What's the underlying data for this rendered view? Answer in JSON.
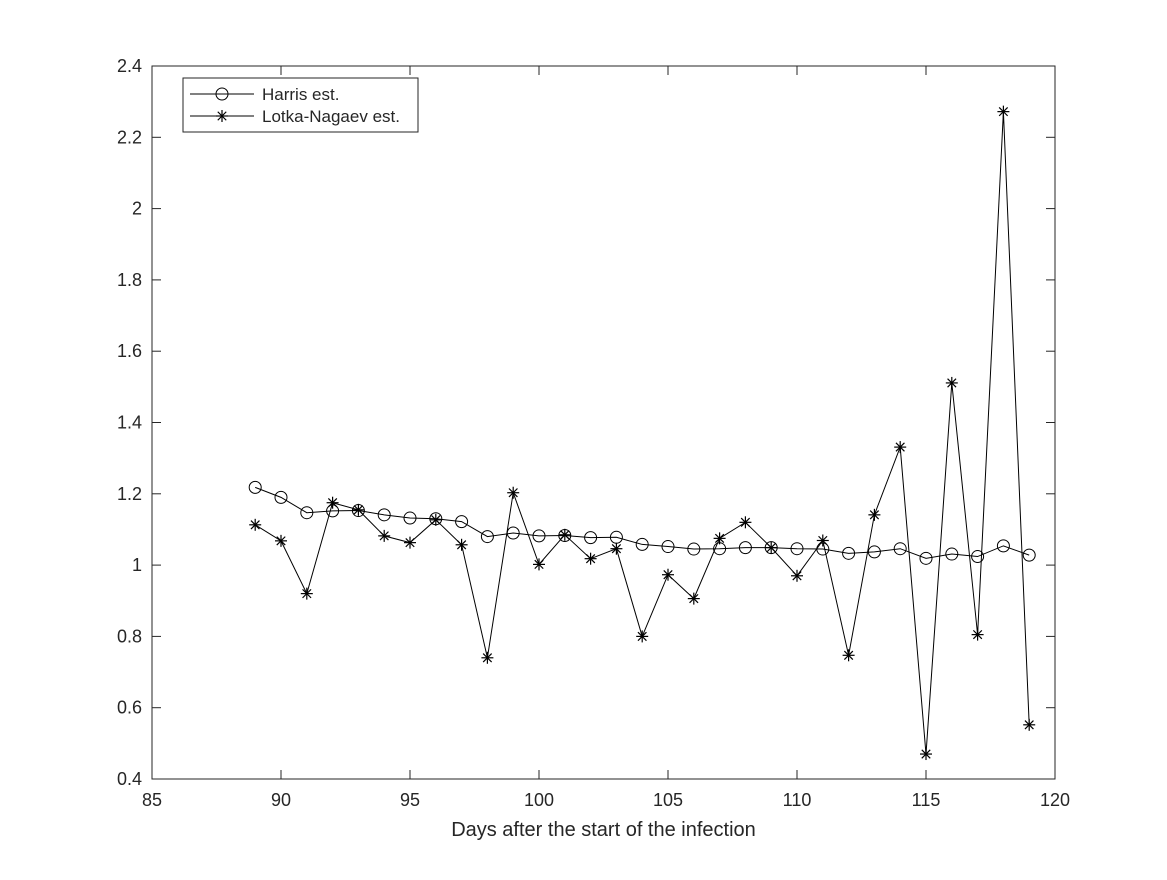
{
  "chart_data": {
    "type": "line",
    "title": "",
    "xlabel": "Days after the start of the infection",
    "ylabel": "",
    "xlim": [
      85,
      120
    ],
    "ylim": [
      0.4,
      2.4
    ],
    "xticks": [
      85,
      90,
      95,
      100,
      105,
      110,
      115,
      120
    ],
    "yticks": [
      0.4,
      0.6,
      0.8,
      1,
      1.2,
      1.4,
      1.6,
      1.8,
      2,
      2.2,
      2.4
    ],
    "grid": false,
    "legend_position": "top-left",
    "x": [
      89,
      90,
      91,
      92,
      93,
      94,
      95,
      96,
      97,
      98,
      99,
      100,
      101,
      102,
      103,
      104,
      105,
      106,
      107,
      108,
      109,
      110,
      111,
      112,
      113,
      114,
      115,
      116,
      117,
      118,
      119
    ],
    "series": [
      {
        "name": "Harris est.",
        "marker": "circle",
        "color": "#000000",
        "values": [
          1.218,
          1.19,
          1.147,
          1.152,
          1.153,
          1.141,
          1.132,
          1.13,
          1.122,
          1.08,
          1.09,
          1.082,
          1.083,
          1.077,
          1.078,
          1.058,
          1.052,
          1.045,
          1.046,
          1.049,
          1.049,
          1.046,
          1.045,
          1.033,
          1.037,
          1.046,
          1.019,
          1.031,
          1.024,
          1.054,
          1.028
        ]
      },
      {
        "name": "Lotka-Nagaev est.",
        "marker": "asterisk",
        "color": "#000000",
        "values": [
          1.113,
          1.068,
          0.92,
          1.175,
          1.155,
          1.082,
          1.063,
          1.127,
          1.057,
          0.74,
          1.203,
          1.002,
          1.085,
          1.018,
          1.046,
          0.8,
          0.973,
          0.906,
          1.075,
          1.12,
          1.049,
          0.97,
          1.069,
          0.747,
          1.141,
          1.331,
          0.47,
          1.511,
          0.805,
          2.272,
          0.552
        ]
      }
    ]
  }
}
